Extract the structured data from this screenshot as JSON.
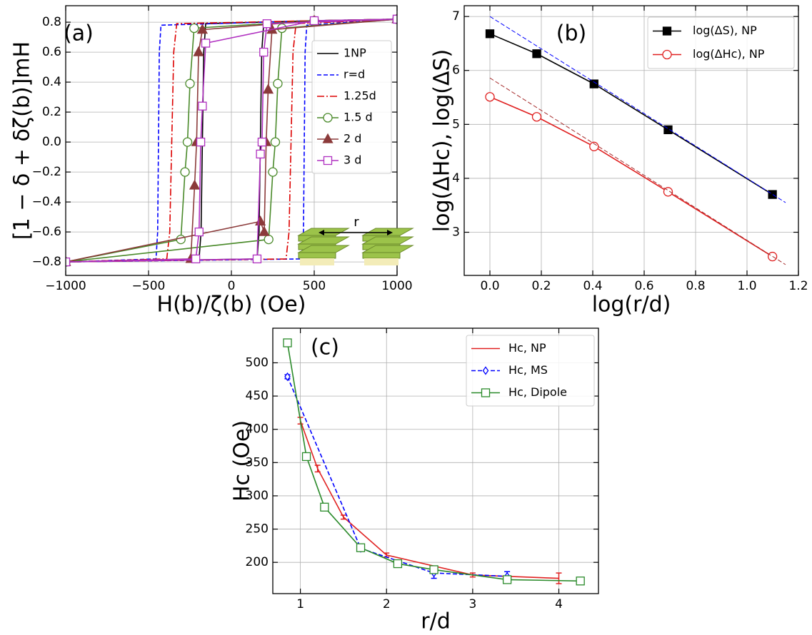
{
  "chart_data": [
    {
      "type": "line",
      "panel_label": "(a)",
      "inset_label": "r",
      "xlabel": "H(b)/ζ(b) (Oe)",
      "ylabel": "[1 − δ + δζ(b)]mH",
      "xlim": [
        -1000,
        1000
      ],
      "ylim": [
        -0.89,
        0.91
      ],
      "xticks": [
        {
          "value": -1000,
          "label": "−1000"
        },
        {
          "value": -500,
          "label": "−500"
        },
        0,
        500,
        1000
      ],
      "yticks": [
        0.8,
        0.6,
        0.4,
        0.2,
        {
          "value": 0,
          "label": "0.0"
        },
        {
          "value": -0.2,
          "label": "−0.2"
        },
        {
          "value": -0.4,
          "label": "−0.4"
        },
        {
          "value": -0.6,
          "label": "−0.6"
        },
        {
          "value": -0.8,
          "label": "−0.8"
        }
      ],
      "grid": true,
      "legend": "upper right",
      "series": [
        {
          "name": "1NP",
          "color": "#000000",
          "linestyle": "solid",
          "x": [
            1000,
            500,
            -155,
            -167,
            -175,
            -183,
            -195,
            -1000,
            155,
            167,
            175,
            183,
            195,
            1000
          ],
          "values": [
            0.82,
            0.81,
            0.79,
            0.6,
            0,
            -0.6,
            -0.78,
            -0.8,
            -0.78,
            -0.6,
            0,
            0.6,
            0.79,
            0.82
          ]
        },
        {
          "name": "r=d",
          "color": "#0000ff",
          "linestyle": "dashed",
          "x": [
            1000,
            500,
            -425,
            -435,
            -440,
            -445,
            -455,
            -1000,
            425,
            435,
            440,
            445,
            455,
            1000
          ],
          "values": [
            0.82,
            0.81,
            0.78,
            0.6,
            0,
            -0.6,
            -0.78,
            -0.8,
            -0.78,
            -0.6,
            0,
            0.6,
            0.78,
            0.82
          ]
        },
        {
          "name": "1.25d",
          "color": "#dd0000",
          "linestyle": "dashdot",
          "x": [
            1000,
            500,
            -330,
            -348,
            -360,
            -372,
            -390,
            -1000,
            330,
            348,
            360,
            372,
            390,
            1000
          ],
          "values": [
            0.82,
            0.81,
            0.79,
            0.6,
            0,
            -0.6,
            -0.78,
            -0.8,
            -0.78,
            -0.6,
            0,
            0.6,
            0.79,
            0.82
          ]
        },
        {
          "name": "1.5 d",
          "color": "#4a8a2a",
          "linestyle": "solid",
          "marker": "circle",
          "open": true,
          "x": [
            1000,
            500,
            -225,
            -250,
            -265,
            -280,
            -305,
            -1000,
            225,
            250,
            265,
            280,
            305,
            1000
          ],
          "values": [
            0.82,
            0.81,
            0.76,
            0.39,
            0,
            -0.2,
            -0.65,
            -0.8,
            -0.65,
            -0.2,
            0,
            0.39,
            0.76,
            0.82
          ]
        },
        {
          "name": "2 d",
          "color": "#8b3a3a",
          "linestyle": "solid",
          "marker": "triangle",
          "open": false,
          "x": [
            1000,
            500,
            -175,
            -198,
            -210,
            -222,
            -245,
            -1000,
            175,
            198,
            210,
            222,
            245,
            1000
          ],
          "values": [
            0.82,
            0.81,
            0.75,
            0.6,
            0,
            -0.29,
            -0.78,
            -0.8,
            -0.53,
            -0.6,
            0,
            0.35,
            0.75,
            0.82
          ]
        },
        {
          "name": "3 d",
          "color": "#b030c0",
          "linestyle": "solid",
          "marker": "square",
          "open": true,
          "x": [
            1000,
            500,
            -155,
            -175,
            -185,
            -195,
            -215,
            -1000,
            155,
            175,
            185,
            195,
            215,
            1000
          ],
          "values": [
            0.82,
            0.81,
            0.66,
            0.24,
            0,
            -0.6,
            -0.78,
            -0.8,
            -0.78,
            -0.08,
            0,
            0.6,
            0.79,
            0.82
          ]
        }
      ]
    },
    {
      "type": "line",
      "panel_label": "(b)",
      "xlabel": "log(r/d)",
      "ylabel": "log(ΔHc), log(ΔS)",
      "xlim": [
        -0.1,
        1.2
      ],
      "ylim": [
        2.2,
        7.2
      ],
      "xticks": [
        {
          "value": 0,
          "label": "0.0"
        },
        0.2,
        0.4,
        0.6,
        0.8,
        {
          "value": 1,
          "label": "1.0"
        },
        1.2
      ],
      "yticks": [
        3,
        4,
        5,
        6,
        7
      ],
      "grid": true,
      "legend": "upper right",
      "series": [
        {
          "name": "log(ΔS), NP",
          "color": "#000000",
          "linestyle": "solid",
          "marker": "square",
          "open": false,
          "x": [
            0,
            0.182,
            0.405,
            0.693,
            1.099
          ],
          "values": [
            6.68,
            6.31,
            5.75,
            4.9,
            3.7
          ]
        },
        {
          "name": "log(ΔHc), NP",
          "color": "#e02020",
          "linestyle": "solid",
          "marker": "circle",
          "open": true,
          "x": [
            0,
            0.182,
            0.405,
            0.693,
            1.099
          ],
          "values": [
            5.51,
            5.14,
            4.59,
            3.75,
            2.55
          ]
        },
        {
          "color": "#0000ff",
          "linestyle": "dashed",
          "x": [
            0,
            1.15
          ],
          "values": [
            7.0,
            3.55
          ]
        },
        {
          "color": "#a52a2a",
          "linestyle": "dashed",
          "x": [
            0,
            1.15
          ],
          "values": [
            5.86,
            2.4
          ]
        }
      ]
    },
    {
      "type": "line",
      "panel_label": "(c)",
      "xlabel": "r/d",
      "ylabel": "Hc (Oe)",
      "xlim": [
        0.68,
        4.46
      ],
      "ylim": [
        153,
        552
      ],
      "xticks": [
        1,
        2,
        3,
        4
      ],
      "yticks": [
        200,
        250,
        300,
        350,
        400,
        450,
        500
      ],
      "grid": true,
      "legend": "upper right",
      "series": [
        {
          "name": "Hc, NP",
          "color": "#e02020",
          "linestyle": "solid",
          "x": [
            1,
            1.2,
            1.5,
            2,
            3,
            4
          ],
          "values": [
            413,
            341,
            268,
            211,
            181,
            176
          ],
          "errors": [
            5,
            5,
            3,
            3,
            3,
            8
          ]
        },
        {
          "name": "Hc, MS",
          "color": "#0000ff",
          "linestyle": "dashed",
          "marker": "diamond",
          "open": true,
          "x": [
            0.85,
            1.7,
            2.55,
            3.4
          ],
          "values": [
            479,
            221,
            184,
            179
          ],
          "errors": [
            3,
            4,
            8,
            7
          ]
        },
        {
          "name": "Hc, Dipole",
          "color": "#2a8a2a",
          "linestyle": "solid",
          "marker": "square",
          "open": true,
          "x": [
            0.85,
            1.07,
            1.28,
            1.7,
            2.13,
            2.55,
            3.4,
            4.25
          ],
          "values": [
            530,
            359,
            283,
            222,
            198,
            189,
            174,
            172
          ]
        }
      ]
    }
  ]
}
